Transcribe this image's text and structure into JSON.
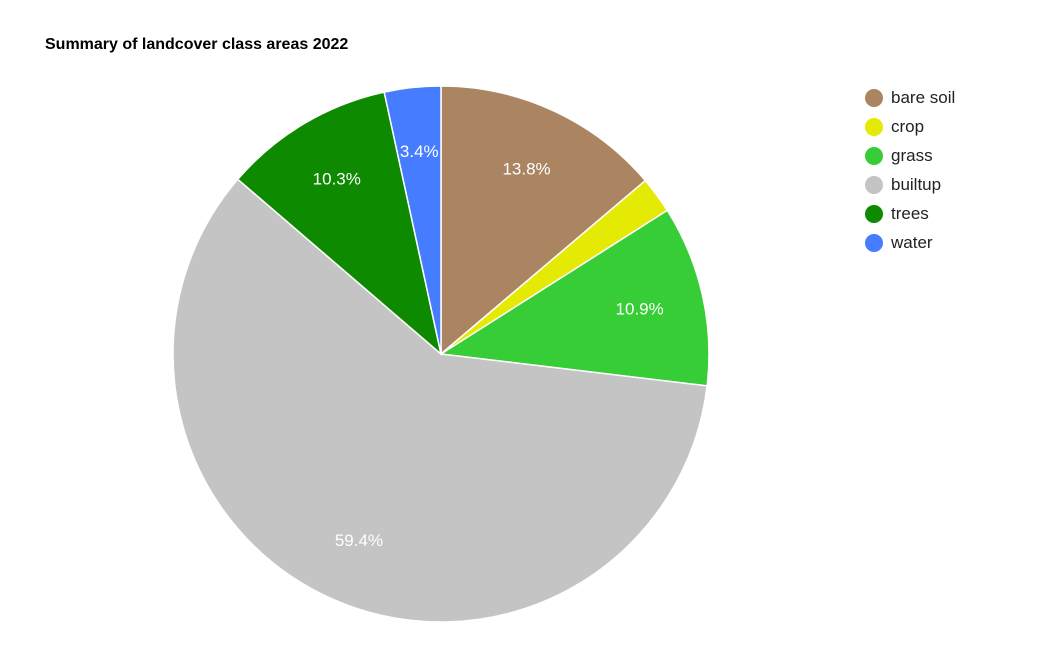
{
  "chart_data": {
    "type": "pie",
    "title": "Summary of landcover class areas 2022",
    "legend_position": "right",
    "categories": [
      "bare soil",
      "crop",
      "grass",
      "builtup",
      "trees",
      "water"
    ],
    "values": [
      13.8,
      2.2,
      10.9,
      59.4,
      10.3,
      3.4
    ],
    "slice_labels": [
      "13.8%",
      "",
      "10.9%",
      "59.4%",
      "10.3%",
      "3.4%"
    ],
    "colors": [
      "#ab8562",
      "#e5ea05",
      "#37cd37",
      "#c4c4c4",
      "#0d8a00",
      "#467cff"
    ]
  }
}
